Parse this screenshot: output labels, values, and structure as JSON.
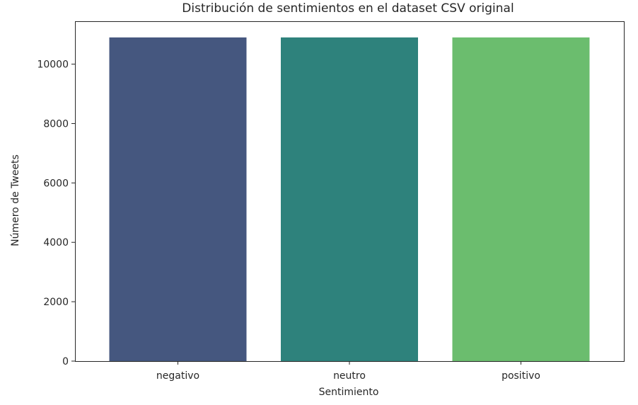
{
  "chart_data": {
    "type": "bar",
    "title": "Distribución de sentimientos en el dataset CSV original",
    "xlabel": "Sentimiento",
    "ylabel": "Número de Tweets",
    "categories": [
      "negativo",
      "neutro",
      "positivo"
    ],
    "values": [
      10900,
      10900,
      10900
    ],
    "colors": [
      "#45577f",
      "#2e827c",
      "#6bbd6e"
    ],
    "ylim": [
      0,
      11445
    ],
    "yticks": [
      0,
      2000,
      4000,
      6000,
      8000,
      10000
    ],
    "grid": false,
    "legend": "none"
  }
}
